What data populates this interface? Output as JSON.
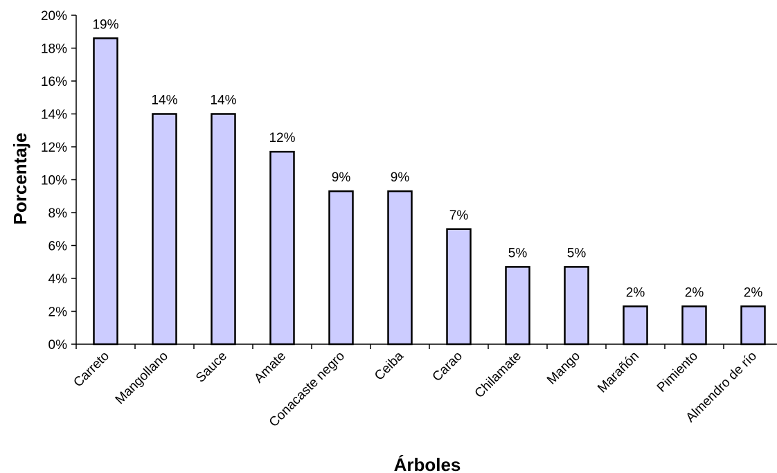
{
  "chart_data": {
    "type": "bar",
    "title": "",
    "xlabel": "Árboles",
    "ylabel": "Porcentaje",
    "ylim": [
      0,
      20
    ],
    "yticks": [
      "0%",
      "2%",
      "4%",
      "6%",
      "8%",
      "10%",
      "12%",
      "14%",
      "16%",
      "18%",
      "20%"
    ],
    "categories": [
      "Carreto",
      "Mangollano",
      "Sauce",
      "Amate",
      "Conacaste negro",
      "Ceiba",
      "Carao",
      "Chilamate",
      "Mango",
      "Marañón",
      "Pimiento",
      "Almendro de río"
    ],
    "values": [
      18.6,
      14.0,
      14.0,
      11.7,
      9.3,
      9.3,
      7.0,
      4.7,
      4.7,
      2.3,
      2.3,
      2.3
    ],
    "data_labels": [
      "19%",
      "14%",
      "14%",
      "12%",
      "9%",
      "9%",
      "7%",
      "5%",
      "5%",
      "2%",
      "2%",
      "2%"
    ],
    "grid": false,
    "legend": "none",
    "colors": {
      "bar_fill": "#ccccff",
      "bar_stroke": "#000000"
    }
  }
}
